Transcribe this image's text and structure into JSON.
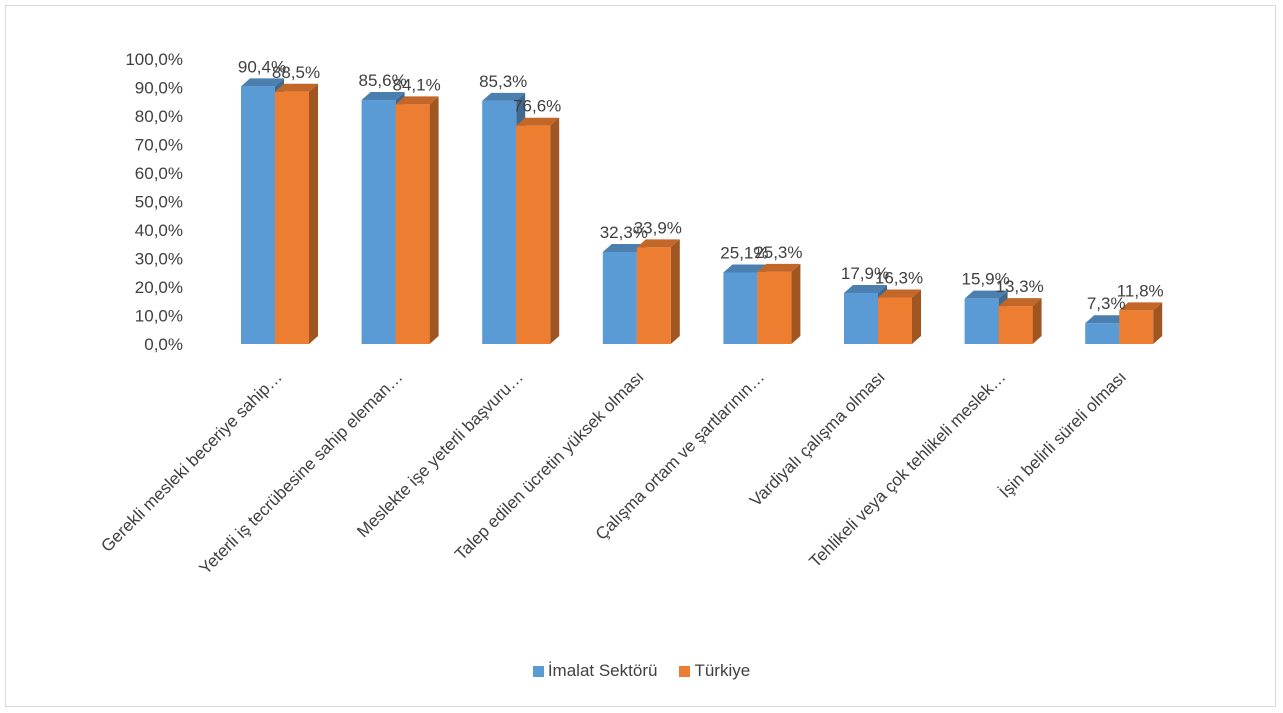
{
  "chart_data": {
    "type": "bar",
    "categories": [
      "Gerekli mesleki beceriye sahip…",
      "Yeterli iş tecrübesine sahip eleman…",
      "Meslekte işe yeterli başvuru…",
      "Talep edilen ücretin yüksek olması",
      "Çalışma ortam ve şartlarının…",
      "Vardiyalı çalışma olması",
      "Tehlikeli veya çok tehlikeli meslek…",
      "İşin belirli süreli olması"
    ],
    "series": [
      {
        "name": "İmalat Sektörü",
        "color": "#5b9bd5",
        "values": [
          90.4,
          85.6,
          85.3,
          32.3,
          25.1,
          17.9,
          15.9,
          7.3
        ],
        "labels": [
          "90,4%",
          "85,6%",
          "85,3%",
          "32,3%",
          "25,1%",
          "17,9%",
          "15,9%",
          "7,3%"
        ]
      },
      {
        "name": "Türkiye",
        "color": "#ed7d31",
        "values": [
          88.5,
          84.1,
          76.6,
          33.9,
          25.3,
          16.3,
          13.3,
          11.8
        ],
        "labels": [
          "88,5%",
          "84,1%",
          "76,6%",
          "33,9%",
          "25,3%",
          "16,3%",
          "13,3%",
          "11,8%"
        ]
      }
    ],
    "yticks": [
      "0,0%",
      "10,0%",
      "20,0%",
      "30,0%",
      "40,0%",
      "50,0%",
      "60,0%",
      "70,0%",
      "80,0%",
      "90,0%",
      "100,0%"
    ],
    "ylim": [
      0,
      100
    ],
    "grid": false,
    "legend": "bottom",
    "style": "3d-clustered-column"
  }
}
